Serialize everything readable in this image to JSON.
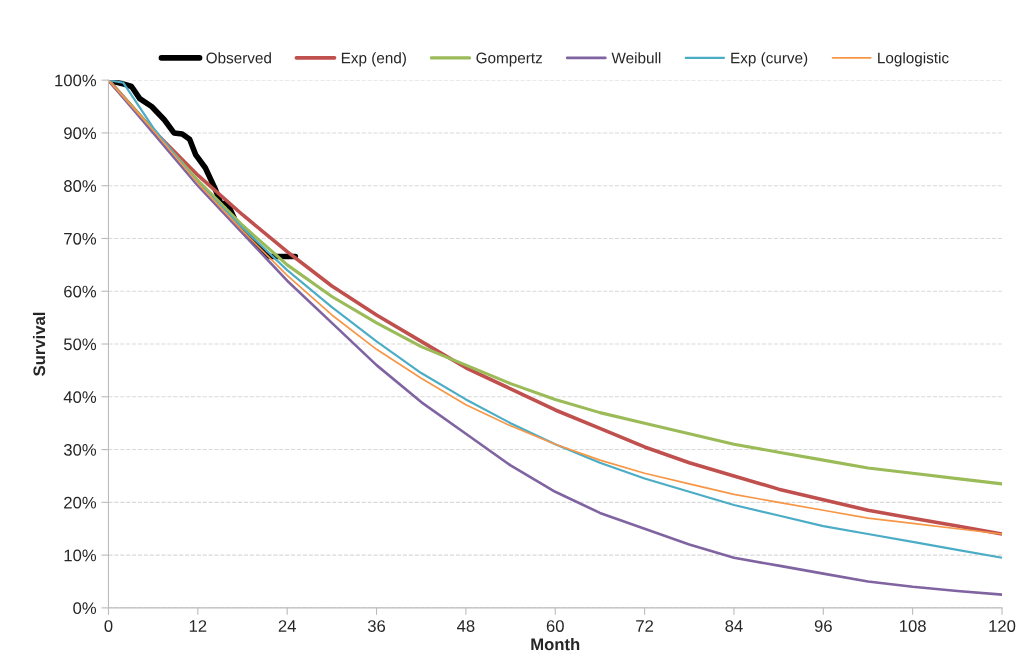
{
  "chart_data": {
    "type": "line",
    "xlabel": "Month",
    "ylabel": "Survival",
    "xlim": [
      0,
      120
    ],
    "xticks": [
      0,
      12,
      24,
      36,
      48,
      60,
      72,
      84,
      96,
      108,
      120
    ],
    "ylim": [
      0,
      100
    ],
    "yticks": [
      {
        "value": 0,
        "label": "0%"
      },
      {
        "value": 10,
        "label": "10%"
      },
      {
        "value": 20,
        "label": "20%"
      },
      {
        "value": 30,
        "label": "30%"
      },
      {
        "value": 40,
        "label": "40%"
      },
      {
        "value": 50,
        "label": "50%"
      },
      {
        "value": 60,
        "label": "60%"
      },
      {
        "value": 70,
        "label": "70%"
      },
      {
        "value": 80,
        "label": "80%"
      },
      {
        "value": 90,
        "label": "90%"
      },
      {
        "value": 100,
        "label": "100%"
      }
    ],
    "grid": "y",
    "legend": "top",
    "marker": "none",
    "line_style": "solid",
    "series": [
      {
        "name": "Observed",
        "color": "#000000",
        "x": [
          0,
          2.2,
          3.1,
          4.2,
          5.8,
          7.5,
          8.8,
          9.9,
          10.9,
          11.7,
          13,
          14.3,
          15.1,
          16,
          17.1,
          19,
          21,
          21.7,
          25.1
        ],
        "values": [
          100,
          99.2,
          98.8,
          96.5,
          95,
          92.5,
          90,
          89.8,
          88.8,
          85.9,
          83.4,
          79.5,
          76.6,
          76.6,
          73.2,
          70.3,
          67,
          66.6,
          66.6
        ]
      },
      {
        "name": "Exp (end)",
        "color": "#c0504d",
        "x": [
          0,
          6,
          12,
          18,
          24,
          30,
          36,
          42,
          48,
          54,
          60,
          66,
          72,
          78,
          84,
          90,
          96,
          102,
          108,
          114,
          120
        ],
        "values": [
          100,
          90.5,
          82,
          74.5,
          67.5,
          61,
          55.5,
          50.5,
          45.5,
          41.5,
          37.5,
          34,
          30.5,
          27.5,
          25,
          22.5,
          20.5,
          18.5,
          17,
          15.5,
          14
        ]
      },
      {
        "name": "Gompertz",
        "color": "#9bbb59",
        "x": [
          0,
          6,
          12,
          18,
          24,
          30,
          36,
          42,
          48,
          54,
          60,
          66,
          72,
          78,
          84,
          90,
          96,
          102,
          108,
          114,
          120
        ],
        "values": [
          100,
          90.5,
          81,
          72.5,
          65,
          59,
          54,
          49.5,
          46,
          42.5,
          39.5,
          37,
          35,
          33,
          31,
          29.5,
          28,
          26.5,
          25.5,
          24.5,
          23.5
        ]
      },
      {
        "name": "Weibull",
        "color": "#8064a2",
        "x": [
          0,
          6,
          12,
          18,
          24,
          30,
          36,
          42,
          48,
          54,
          60,
          66,
          72,
          78,
          84,
          90,
          96,
          102,
          108,
          114,
          120
        ],
        "values": [
          100,
          90,
          80,
          71,
          62,
          54,
          46,
          39,
          33,
          27,
          22,
          18,
          15,
          12,
          9.5,
          8,
          6.5,
          5,
          4,
          3.2,
          2.5
        ]
      },
      {
        "name": "Exp (curve)",
        "color": "#4bacc6",
        "x": [
          0,
          2,
          6,
          12,
          18,
          24,
          30,
          36,
          42,
          48,
          54,
          60,
          66,
          72,
          78,
          84,
          90,
          96,
          102,
          108,
          114,
          120
        ],
        "values": [
          100,
          99.5,
          91,
          80.5,
          72,
          64,
          57,
          50.5,
          44.5,
          39.5,
          35,
          31,
          27.5,
          24.5,
          22,
          19.5,
          17.5,
          15.5,
          14,
          12.5,
          11,
          9.5
        ]
      },
      {
        "name": "Loglogistic",
        "color": "#f79646",
        "x": [
          0,
          6,
          12,
          18,
          24,
          30,
          36,
          42,
          48,
          54,
          60,
          66,
          72,
          78,
          84,
          90,
          96,
          102,
          108,
          114,
          120
        ],
        "values": [
          100,
          90.5,
          80.5,
          71.5,
          63,
          55.5,
          49,
          43.5,
          38.5,
          34.5,
          31,
          28,
          25.5,
          23.5,
          21.5,
          20,
          18.5,
          17,
          16,
          15,
          14
        ]
      }
    ]
  }
}
